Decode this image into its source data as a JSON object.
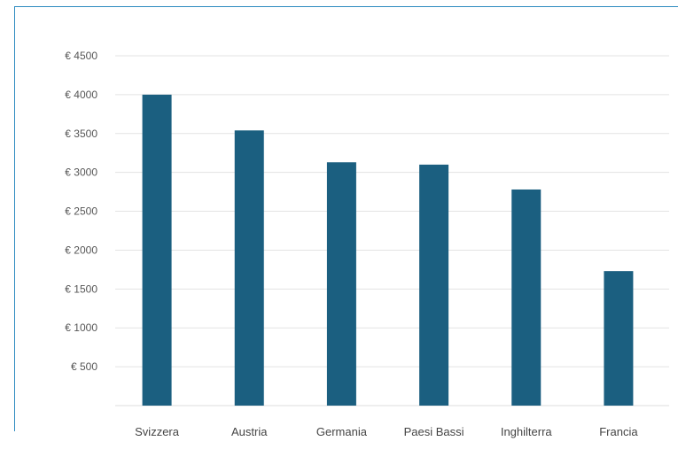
{
  "chart_data": {
    "type": "bar",
    "title": "",
    "xlabel": "",
    "ylabel": "",
    "categories": [
      "Svizzera",
      "Austria",
      "Germania",
      "Paesi Bassi",
      "Inghilterra",
      "Francia"
    ],
    "values": [
      4000,
      3540,
      3130,
      3100,
      2780,
      1730
    ],
    "ylim": [
      0,
      4500
    ],
    "y_ticks": [
      500,
      1000,
      1500,
      2000,
      2500,
      3000,
      3500,
      4000,
      4500
    ],
    "y_tick_labels": [
      "€ 500",
      "€ 1000",
      "€ 1500",
      "€ 2000",
      "€ 2500",
      "€ 3000",
      "€ 3500",
      "€ 4000",
      "€ 4500"
    ],
    "grid": true,
    "legend": "none",
    "colors": {
      "bar": "#1b5f80",
      "grid": "#e3e3e3",
      "frame": "#2e8bc0"
    }
  }
}
